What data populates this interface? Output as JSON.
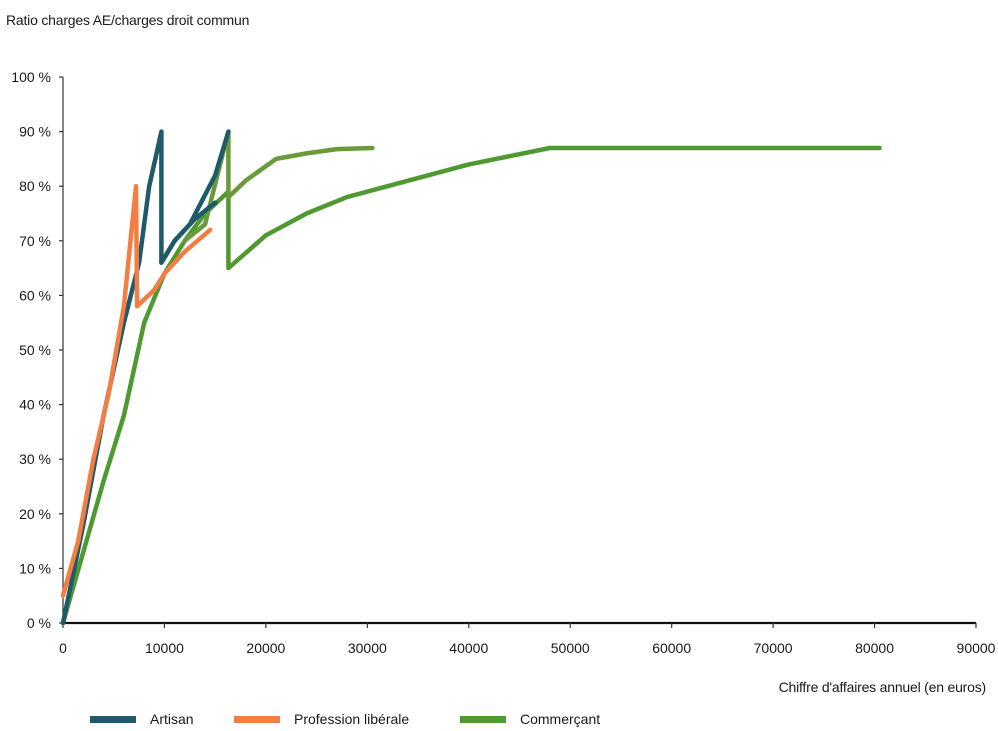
{
  "chart_data": {
    "type": "line",
    "title": "",
    "ylabel": "Ratio charges AE/charges droit commun",
    "xlabel": "Chiffre d'affaires annuel (en euros)",
    "xlim": [
      0,
      90000
    ],
    "ylim": [
      0,
      100
    ],
    "x_ticks": [
      0,
      10000,
      20000,
      30000,
      40000,
      50000,
      60000,
      70000,
      80000,
      90000
    ],
    "x_tick_labels": [
      "0",
      "10000",
      "20000",
      "30000",
      "40000",
      "50000",
      "60000",
      "70000",
      "80000",
      "90000"
    ],
    "y_ticks": [
      0,
      10,
      20,
      30,
      40,
      50,
      60,
      70,
      80,
      90,
      100
    ],
    "y_tick_labels": [
      "0 %",
      "10 %",
      "20 %",
      "30 %",
      "40 %",
      "50 %",
      "60 %",
      "70 %",
      "80 %",
      "90 %",
      "100 %"
    ],
    "grid": false,
    "legend_position": "bottom",
    "series": [
      {
        "name": "Commerçant",
        "color": "#4e9a31",
        "points": [
          [
            0,
            0
          ],
          [
            2000,
            13
          ],
          [
            4000,
            26
          ],
          [
            6000,
            38
          ],
          [
            8000,
            55
          ],
          [
            10000,
            64
          ],
          [
            12000,
            70
          ],
          [
            14000,
            75
          ],
          [
            16300,
            79
          ],
          [
            16300,
            65
          ],
          [
            20000,
            71
          ],
          [
            24000,
            75
          ],
          [
            28000,
            78
          ],
          [
            32000,
            80
          ],
          [
            36000,
            82
          ],
          [
            40000,
            84
          ],
          [
            44000,
            85.5
          ],
          [
            48000,
            87
          ],
          [
            60000,
            87
          ],
          [
            70000,
            87
          ],
          [
            80500,
            87
          ]
        ]
      },
      {
        "name": "Commerçant",
        "color": "#6b9a3a",
        "points": [
          [
            12000,
            70
          ],
          [
            14000,
            73
          ],
          [
            16300,
            90
          ],
          [
            16300,
            78
          ],
          [
            18000,
            81
          ],
          [
            21000,
            85
          ],
          [
            24000,
            86
          ],
          [
            27000,
            86.8
          ],
          [
            30500,
            87
          ]
        ]
      },
      {
        "name": "Artisan",
        "color": "#1f5a6a",
        "points": [
          [
            0,
            0
          ],
          [
            2000,
            18
          ],
          [
            4000,
            38
          ],
          [
            6000,
            55
          ],
          [
            7500,
            66
          ],
          [
            8500,
            80
          ],
          [
            9700,
            90
          ],
          [
            9700,
            66
          ],
          [
            11000,
            70
          ],
          [
            13000,
            74
          ],
          [
            15000,
            77
          ]
        ]
      },
      {
        "name": "Profession libérale",
        "color": "#f47d43",
        "points": [
          [
            0,
            5
          ],
          [
            1500,
            15
          ],
          [
            3000,
            30
          ],
          [
            4500,
            42
          ],
          [
            6000,
            58
          ],
          [
            7200,
            80
          ],
          [
            7300,
            58
          ],
          [
            9000,
            61
          ],
          [
            10000,
            64
          ],
          [
            12000,
            68
          ],
          [
            14500,
            72
          ]
        ]
      },
      {
        "name": "Artisan",
        "color": "#1f5a6a",
        "points": [
          [
            9700,
            66
          ],
          [
            11000,
            70
          ],
          [
            12500,
            73
          ],
          [
            15000,
            82
          ],
          [
            16300,
            90
          ]
        ]
      }
    ],
    "legend": [
      {
        "name": "Artisan",
        "color": "#1f5a6a"
      },
      {
        "name": "Profession libérale",
        "color": "#f47d43"
      },
      {
        "name": "Commerçant",
        "color": "#4e9a31"
      }
    ]
  }
}
